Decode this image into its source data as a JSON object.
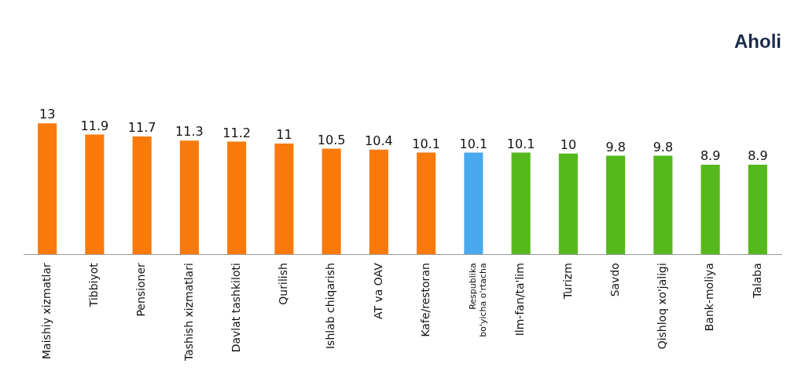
{
  "chart_data": {
    "type": "bar",
    "title": "Aholi",
    "categories": [
      "Maishiy xizmatlar",
      "Tibbiyot",
      "Pensioner",
      "Tashish xizmatlari",
      "Davlat tashkiloti",
      "Qurilish",
      "Ishlab chiqarish",
      "AT va OAV",
      "Kafe/restoran",
      "Respublika bo'yicha o'rtacha",
      "Ilm-fan/ta'lim",
      "Turizm",
      "Savdo",
      "Qishloq xo'jaligi",
      "Bank-moliya",
      "Talaba"
    ],
    "values": [
      13,
      11.9,
      11.7,
      11.3,
      11.2,
      11,
      10.5,
      10.4,
      10.1,
      10.1,
      10.1,
      10,
      9.8,
      9.8,
      8.9,
      8.9
    ],
    "colors": [
      "#f97a0a",
      "#f97a0a",
      "#f97a0a",
      "#f97a0a",
      "#f97a0a",
      "#f97a0a",
      "#f97a0a",
      "#f97a0a",
      "#f97a0a",
      "#4aa9ec",
      "#55b81c",
      "#55b81c",
      "#55b81c",
      "#55b81c",
      "#55b81c",
      "#55b81c"
    ],
    "data_labels": true,
    "grid": false,
    "legend": false,
    "tick_labels": "x"
  }
}
